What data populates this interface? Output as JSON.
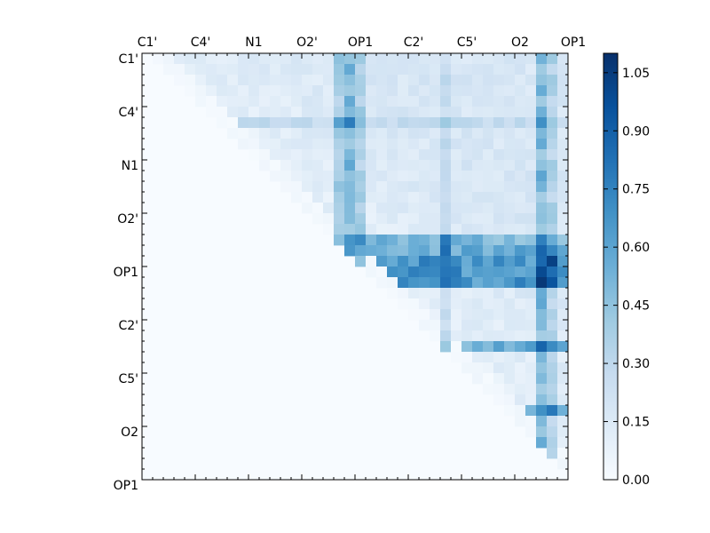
{
  "chart_data": {
    "type": "heatmap",
    "title": "",
    "xlabel": "",
    "ylabel": "",
    "n": 40,
    "x_tick_positions": [
      0,
      5,
      10,
      15,
      20,
      25,
      30,
      35,
      40
    ],
    "x_tick_labels": [
      "C1'",
      "C4'",
      "N1",
      "O2'",
      "OP1",
      "C2'",
      "C5'",
      "O2",
      "OP1"
    ],
    "y_tick_positions": [
      0,
      5,
      10,
      15,
      20,
      25,
      30,
      35,
      40
    ],
    "y_tick_labels": [
      "C1'",
      "C4'",
      "N1",
      "O2'",
      "OP1",
      "C2'",
      "C5'",
      "O2",
      "OP1"
    ],
    "value_range": [
      0,
      1.1
    ],
    "colormap": "Blues",
    "colorbar": {
      "ticks": [
        0.0,
        0.15,
        0.3,
        0.45,
        0.6,
        0.75,
        0.9,
        1.05
      ],
      "tick_labels": [
        "0.00",
        "0.15",
        "0.30",
        "0.45",
        "0.60",
        "0.75",
        "0.90",
        "1.05"
      ]
    },
    "upper_triangle_only": true,
    "highlight_columns": [
      {
        "col": 18,
        "value": 0.42
      },
      {
        "col": 19,
        "value": 0.55
      },
      {
        "col": 20,
        "value": 0.4
      },
      {
        "col": 28,
        "value": 0.3
      },
      {
        "col": 37,
        "value": 0.55
      },
      {
        "col": 38,
        "value": 0.38
      }
    ],
    "highlight_rows": [
      {
        "row": 6,
        "value": 0.3
      },
      {
        "row": 17,
        "value": 0.55
      },
      {
        "row": 18,
        "value": 0.6
      },
      {
        "row": 19,
        "value": 0.72
      },
      {
        "row": 20,
        "value": 0.72
      },
      {
        "row": 21,
        "value": 0.72
      },
      {
        "row": 27,
        "value": 0.6
      },
      {
        "row": 33,
        "value": 0.55
      }
    ],
    "base_value": 0.08
  }
}
